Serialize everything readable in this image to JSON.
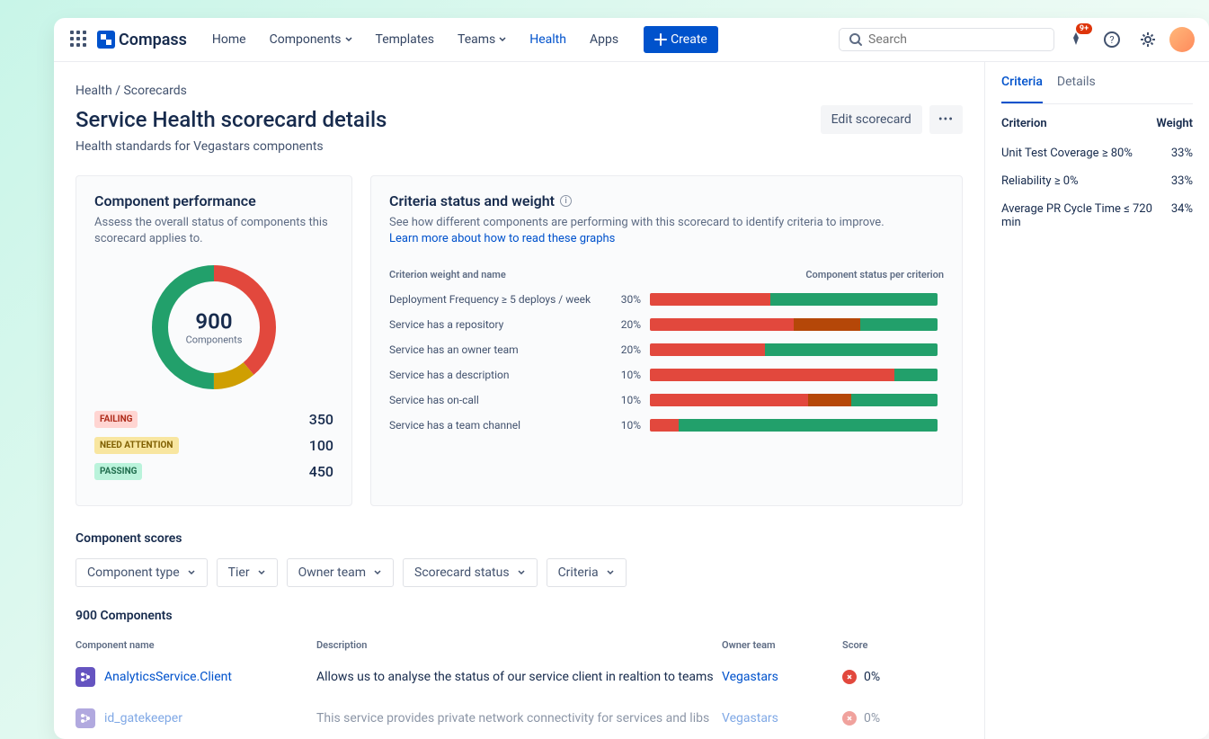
{
  "topbar": {
    "brand": "Compass",
    "nav": [
      {
        "label": "Home",
        "dropdown": false,
        "active": false
      },
      {
        "label": "Components",
        "dropdown": true,
        "active": false
      },
      {
        "label": "Templates",
        "dropdown": false,
        "active": false
      },
      {
        "label": "Teams",
        "dropdown": true,
        "active": false
      },
      {
        "label": "Health",
        "dropdown": false,
        "active": true
      },
      {
        "label": "Apps",
        "dropdown": false,
        "active": false
      }
    ],
    "create_label": "Create",
    "search_placeholder": "Search",
    "notification_badge": "9+"
  },
  "breadcrumb": {
    "root": "Health",
    "sep": " / ",
    "current": "Scorecards"
  },
  "page": {
    "title": "Service Health scorecard details",
    "subtitle": "Health standards for Vegastars components",
    "edit_label": "Edit scorecard"
  },
  "performance": {
    "title": "Component performance",
    "desc": "Assess the overall status of components this scorecard applies to.",
    "total": "900",
    "total_label": "Components",
    "donut": {
      "segments": [
        {
          "label": "FAILING",
          "value": 350,
          "color": "#e2483d",
          "bg": "#ffd5d2",
          "text": "#ae2a19"
        },
        {
          "label": "NEED ATTENTION",
          "value": 100,
          "color": "#cf9f02",
          "bg": "#f8e6a0",
          "text": "#7f5f01"
        },
        {
          "label": "PASSING",
          "value": 450,
          "color": "#22a06b",
          "bg": "#baf3db",
          "text": "#216e4e"
        }
      ]
    }
  },
  "criteria": {
    "title": "Criteria status and weight",
    "desc": "See how different components are performing with this scorecard to identify criteria to improve.",
    "link": "Learn more about how to read these graphs",
    "col1": "Criterion weight and name",
    "col2": "Component status per criterion",
    "rows": [
      {
        "name": "Deployment Frequency ≥ 5 deploys / week",
        "weight": "30%",
        "segs": [
          {
            "c": "#e2483d",
            "w": 42
          },
          {
            "c": "#22a06b",
            "w": 58
          }
        ],
        "total": 100
      },
      {
        "name": "Service has a repository",
        "weight": "20%",
        "segs": [
          {
            "c": "#e2483d",
            "w": 50
          },
          {
            "c": "#b54708",
            "w": 23
          },
          {
            "c": "#22a06b",
            "w": 27
          }
        ],
        "total": 67
      },
      {
        "name": "Service has an owner team",
        "weight": "20%",
        "segs": [
          {
            "c": "#e2483d",
            "w": 40
          },
          {
            "c": "#22a06b",
            "w": 60
          }
        ],
        "total": 67
      },
      {
        "name": "Service has a description",
        "weight": "10%",
        "segs": [
          {
            "c": "#e2483d",
            "w": 85
          },
          {
            "c": "#22a06b",
            "w": 15
          }
        ],
        "total": 33
      },
      {
        "name": "Service has on-call",
        "weight": "10%",
        "segs": [
          {
            "c": "#e2483d",
            "w": 55
          },
          {
            "c": "#b54708",
            "w": 15
          },
          {
            "c": "#22a06b",
            "w": 30
          }
        ],
        "total": 33
      },
      {
        "name": "Service has a team channel",
        "weight": "10%",
        "segs": [
          {
            "c": "#e2483d",
            "w": 10
          },
          {
            "c": "#22a06b",
            "w": 90
          }
        ],
        "total": 33
      }
    ]
  },
  "scores": {
    "section_title": "Component scores",
    "filters": [
      "Component type",
      "Tier",
      "Owner team",
      "Scorecard status",
      "Criteria"
    ],
    "count_label": "900 Components",
    "columns": [
      "Component name",
      "Description",
      "Owner team",
      "Score"
    ],
    "rows": [
      {
        "name": "AnalyticsService.Client",
        "desc": "Allows us to analyse the status of our service client in realtion to teams",
        "owner": "Vegastars",
        "score": "0%",
        "score_color": "#e2483d"
      },
      {
        "name": "id_gatekeeper",
        "desc": "This service provides private network connectivity for services and libs",
        "owner": "Vegastars",
        "score": "0%",
        "score_color": "#e2483d"
      }
    ]
  },
  "sidepanel": {
    "tabs": [
      {
        "label": "Criteria",
        "active": true
      },
      {
        "label": "Details",
        "active": false
      }
    ],
    "header": {
      "c1": "Criterion",
      "c2": "Weight"
    },
    "rows": [
      {
        "label": "Unit Test Coverage ≥ 80%",
        "weight": "33%"
      },
      {
        "label": "Reliability ≥ 0%",
        "weight": "33%"
      },
      {
        "label": "Average PR Cycle Time ≤ 720 min",
        "weight": "34%"
      }
    ]
  },
  "colors": {
    "primary": "#0052cc",
    "text": "#172b4d",
    "muted": "#5e6c84"
  }
}
